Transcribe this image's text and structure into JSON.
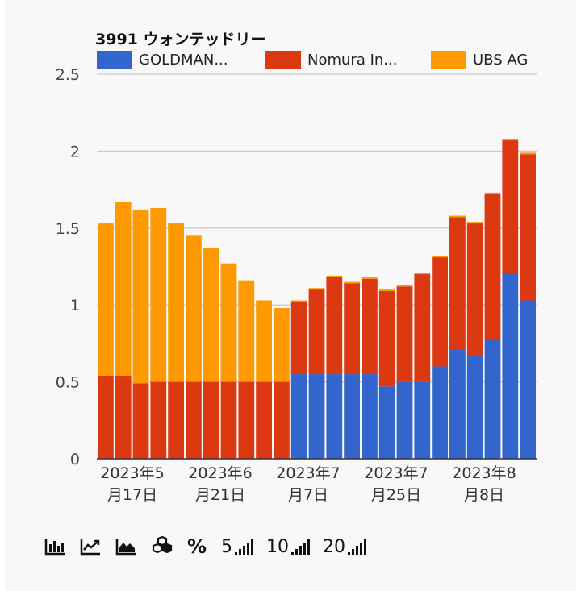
{
  "chart_data": {
    "type": "bar",
    "stacked": true,
    "title": "3991 ウォンテッドリー",
    "legend_position": "top",
    "series": [
      {
        "name": "GOLDMAN...",
        "color": "#3366cc",
        "values": [
          0,
          0,
          0,
          0,
          0,
          0,
          0,
          0,
          0,
          0,
          0,
          0.55,
          0.55,
          0.55,
          0.55,
          0.55,
          0.47,
          0.5,
          0.5,
          0.6,
          0.71,
          0.67,
          0.78,
          1.21,
          1.03
        ]
      },
      {
        "name": "Nomura In...",
        "color": "#dc3912",
        "values": [
          0.54,
          0.54,
          0.49,
          0.5,
          0.5,
          0.5,
          0.5,
          0.5,
          0.5,
          0.5,
          0.5,
          0.47,
          0.55,
          0.63,
          0.59,
          0.62,
          0.62,
          0.62,
          0.7,
          0.71,
          0.86,
          0.86,
          0.94,
          0.86,
          0.95
        ]
      },
      {
        "name": "UBS AG",
        "color": "#ff9900",
        "values": [
          0.99,
          1.13,
          1.13,
          1.13,
          1.03,
          0.95,
          0.87,
          0.77,
          0.66,
          0.53,
          0.48,
          0.01,
          0.01,
          0.01,
          0.01,
          0.01,
          0.01,
          0.01,
          0.01,
          0.01,
          0.01,
          0.01,
          0.01,
          0.01,
          0.01
        ]
      }
    ],
    "ylim": [
      0,
      2.5
    ],
    "yticks": [
      "0",
      "0.5",
      "1",
      "1.5",
      "2",
      "2.5"
    ],
    "xtick_labels": [
      {
        "index": 0,
        "line1": "2023年5",
        "line2": "月17日"
      },
      {
        "index": 5,
        "line1": "2023年6",
        "line2": "月21日"
      },
      {
        "index": 10,
        "line1": "2023年7",
        "line2": "月7日"
      },
      {
        "index": 15,
        "line1": "2023年7",
        "line2": "月25日"
      },
      {
        "index": 20,
        "line1": "2023年8",
        "line2": "月8日"
      }
    ],
    "grid": true
  },
  "toolbar": {
    "icons": [
      "bar-chart-icon",
      "line-chart-icon",
      "area-chart-icon",
      "stacked-boxes-icon",
      "percent-icon"
    ],
    "percent_label": "%",
    "range_buttons": [
      {
        "label": "5"
      },
      {
        "label": "10"
      },
      {
        "label": "20"
      }
    ]
  }
}
